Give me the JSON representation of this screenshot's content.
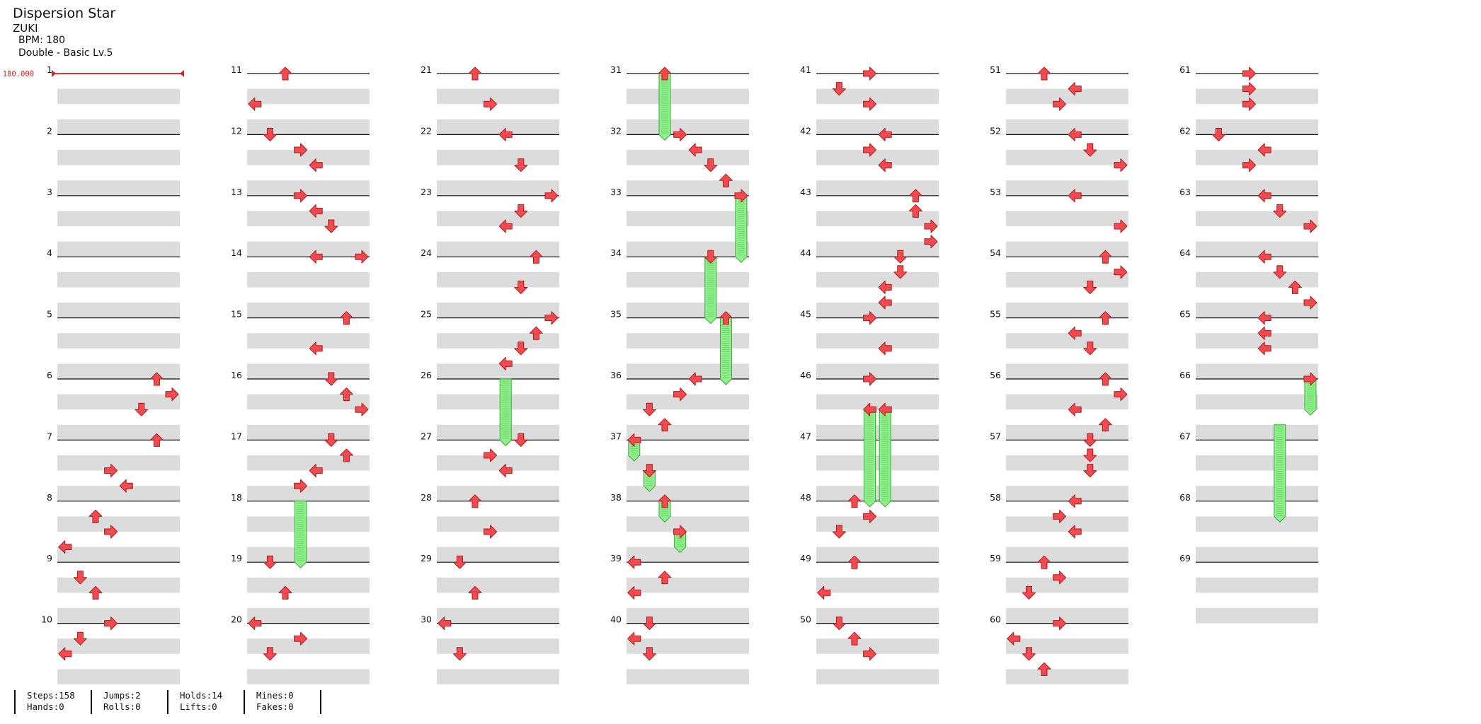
{
  "header": {
    "title": "Dispersion Star",
    "artist": "ZUKI",
    "bpm": "BPM: 180",
    "difficulty": "Double - Basic Lv.5"
  },
  "bpm_marker": "180.000",
  "colors": {
    "arrow_fill": "#f24a4f",
    "arrow_stroke": "#b11a20",
    "hold_fill": "#8ef08a",
    "hold_stripe": "#3aa63a",
    "band": "#dcdcdc",
    "bpm_red": "#e02020"
  },
  "measures": [
    {
      "n": 1,
      "rows": []
    },
    {
      "n": 2,
      "rows": []
    },
    {
      "n": 3,
      "rows": []
    },
    {
      "n": 4,
      "rows": []
    },
    {
      "n": 5,
      "rows": []
    },
    {
      "n": 6,
      "rows": [
        [
          0,
          6,
          "up"
        ],
        [
          1,
          7,
          "right"
        ],
        [
          2,
          5,
          "down"
        ]
      ]
    },
    {
      "n": 7,
      "rows": [
        [
          0,
          6,
          "up"
        ],
        [
          2,
          3,
          "right"
        ],
        [
          3,
          4,
          "left"
        ]
      ]
    },
    {
      "n": 8,
      "rows": [
        [
          1,
          2,
          "up"
        ],
        [
          2,
          3,
          "right"
        ],
        [
          3,
          0,
          "left"
        ]
      ]
    },
    {
      "n": 9,
      "rows": [
        [
          1,
          1,
          "down"
        ],
        [
          2,
          2,
          "up"
        ]
      ]
    },
    {
      "n": 10,
      "rows": [
        [
          0,
          3,
          "right"
        ],
        [
          1,
          1,
          "down"
        ],
        [
          2,
          0,
          "left"
        ]
      ]
    },
    {
      "n": 11,
      "rows": [
        [
          0,
          2,
          "up"
        ],
        [
          2,
          0,
          "left"
        ]
      ]
    },
    {
      "n": 12,
      "rows": [
        [
          0,
          1,
          "down"
        ],
        [
          1,
          3,
          "right"
        ],
        [
          2,
          4,
          "left"
        ]
      ]
    },
    {
      "n": 13,
      "rows": [
        [
          0,
          3,
          "right"
        ],
        [
          1,
          4,
          "left"
        ],
        [
          2,
          5,
          "down"
        ]
      ]
    },
    {
      "n": 14,
      "rows": [
        [
          0,
          4,
          "left"
        ],
        [
          0,
          7,
          "right"
        ]
      ]
    },
    {
      "n": 15,
      "rows": [
        [
          0,
          6,
          "up"
        ],
        [
          2,
          4,
          "left"
        ]
      ]
    },
    {
      "n": 16,
      "rows": [
        [
          0,
          5,
          "down"
        ],
        [
          1,
          6,
          "up"
        ],
        [
          2,
          7,
          "right"
        ]
      ]
    },
    {
      "n": 17,
      "rows": [
        [
          0,
          5,
          "down"
        ],
        [
          1,
          6,
          "up"
        ],
        [
          2,
          4,
          "left"
        ],
        [
          3,
          3,
          "right"
        ]
      ]
    },
    {
      "n": 18,
      "rows": []
    },
    {
      "n": 19,
      "rows": [
        [
          0,
          1,
          "down"
        ],
        [
          2,
          2,
          "up"
        ]
      ]
    },
    {
      "n": 20,
      "rows": [
        [
          0,
          0,
          "left"
        ],
        [
          1,
          3,
          "right"
        ],
        [
          2,
          1,
          "down"
        ]
      ]
    },
    {
      "n": 21,
      "rows": [
        [
          0,
          2,
          "up"
        ],
        [
          2,
          3,
          "right"
        ]
      ]
    },
    {
      "n": 22,
      "rows": [
        [
          0,
          4,
          "left"
        ],
        [
          2,
          5,
          "down"
        ]
      ]
    },
    {
      "n": 23,
      "rows": [
        [
          0,
          7,
          "right"
        ],
        [
          1,
          5,
          "down"
        ],
        [
          2,
          4,
          "left"
        ]
      ]
    },
    {
      "n": 24,
      "rows": [
        [
          0,
          6,
          "up"
        ],
        [
          2,
          5,
          "down"
        ]
      ]
    },
    {
      "n": 25,
      "rows": [
        [
          0,
          7,
          "right"
        ],
        [
          1,
          6,
          "up"
        ],
        [
          2,
          5,
          "down"
        ],
        [
          3,
          4,
          "left"
        ]
      ]
    },
    {
      "n": 26,
      "rows": []
    },
    {
      "n": 27,
      "rows": [
        [
          0,
          5,
          "down"
        ],
        [
          1,
          3,
          "right"
        ],
        [
          2,
          4,
          "left"
        ]
      ]
    },
    {
      "n": 28,
      "rows": [
        [
          0,
          2,
          "up"
        ],
        [
          2,
          3,
          "right"
        ]
      ]
    },
    {
      "n": 29,
      "rows": [
        [
          0,
          1,
          "down"
        ],
        [
          2,
          2,
          "up"
        ]
      ]
    },
    {
      "n": 30,
      "rows": [
        [
          0,
          0,
          "left"
        ],
        [
          2,
          1,
          "down"
        ]
      ]
    },
    {
      "n": 31,
      "rows": [
        [
          0,
          2,
          "up"
        ]
      ]
    },
    {
      "n": 32,
      "rows": [
        [
          0,
          3,
          "right"
        ],
        [
          1,
          4,
          "left"
        ],
        [
          2,
          5,
          "down"
        ],
        [
          3,
          6,
          "up"
        ]
      ]
    },
    {
      "n": 33,
      "rows": [
        [
          0,
          7,
          "right"
        ]
      ]
    },
    {
      "n": 34,
      "rows": [
        [
          0,
          5,
          "down"
        ]
      ]
    },
    {
      "n": 35,
      "rows": [
        [
          0,
          6,
          "up"
        ]
      ]
    },
    {
      "n": 36,
      "rows": [
        [
          0,
          4,
          "left"
        ],
        [
          1,
          3,
          "right"
        ],
        [
          2,
          1,
          "down"
        ],
        [
          3,
          2,
          "up"
        ]
      ]
    },
    {
      "n": 37,
      "rows": [
        [
          0,
          0,
          "left"
        ],
        [
          2,
          1,
          "down"
        ]
      ]
    },
    {
      "n": 38,
      "rows": [
        [
          0,
          2,
          "up"
        ],
        [
          2,
          3,
          "right"
        ]
      ]
    },
    {
      "n": 39,
      "rows": [
        [
          0,
          0,
          "left"
        ],
        [
          1,
          2,
          "up"
        ],
        [
          2,
          0,
          "left"
        ]
      ]
    },
    {
      "n": 40,
      "rows": [
        [
          0,
          1,
          "down"
        ],
        [
          1,
          0,
          "left"
        ],
        [
          2,
          1,
          "down"
        ]
      ]
    },
    {
      "n": 41,
      "rows": [
        [
          0,
          3,
          "right"
        ],
        [
          1,
          1,
          "down"
        ],
        [
          2,
          3,
          "right"
        ]
      ]
    },
    {
      "n": 42,
      "rows": [
        [
          0,
          4,
          "left"
        ],
        [
          1,
          3,
          "right"
        ],
        [
          2,
          4,
          "left"
        ]
      ]
    },
    {
      "n": 43,
      "rows": [
        [
          0,
          6,
          "up"
        ],
        [
          1,
          6,
          "up"
        ],
        [
          2,
          7,
          "right"
        ],
        [
          3,
          7,
          "right"
        ]
      ]
    },
    {
      "n": 44,
      "rows": [
        [
          0,
          5,
          "down"
        ],
        [
          1,
          5,
          "down"
        ],
        [
          2,
          4,
          "left"
        ],
        [
          3,
          4,
          "left"
        ]
      ]
    },
    {
      "n": 45,
      "rows": [
        [
          0,
          3,
          "right"
        ],
        [
          2,
          4,
          "left"
        ]
      ]
    },
    {
      "n": 46,
      "rows": [
        [
          0,
          3,
          "right"
        ],
        [
          2,
          3,
          "left"
        ],
        [
          2,
          4,
          "left"
        ]
      ]
    },
    {
      "n": 47,
      "rows": []
    },
    {
      "n": 48,
      "rows": [
        [
          0,
          2,
          "up"
        ],
        [
          1,
          3,
          "right"
        ],
        [
          2,
          1,
          "down"
        ]
      ]
    },
    {
      "n": 49,
      "rows": [
        [
          0,
          2,
          "up"
        ],
        [
          2,
          0,
          "left"
        ]
      ]
    },
    {
      "n": 50,
      "rows": [
        [
          0,
          1,
          "down"
        ],
        [
          1,
          2,
          "up"
        ],
        [
          2,
          3,
          "right"
        ]
      ]
    },
    {
      "n": 51,
      "rows": [
        [
          0,
          2,
          "up"
        ],
        [
          1,
          4,
          "left"
        ],
        [
          2,
          3,
          "right"
        ]
      ]
    },
    {
      "n": 52,
      "rows": [
        [
          0,
          4,
          "left"
        ],
        [
          1,
          5,
          "down"
        ],
        [
          2,
          7,
          "right"
        ]
      ]
    },
    {
      "n": 53,
      "rows": [
        [
          0,
          4,
          "left"
        ],
        [
          2,
          7,
          "right"
        ]
      ]
    },
    {
      "n": 54,
      "rows": [
        [
          0,
          6,
          "up"
        ],
        [
          1,
          7,
          "right"
        ],
        [
          2,
          5,
          "down"
        ]
      ]
    },
    {
      "n": 55,
      "rows": [
        [
          0,
          6,
          "up"
        ],
        [
          1,
          4,
          "left"
        ],
        [
          2,
          5,
          "down"
        ]
      ]
    },
    {
      "n": 56,
      "rows": [
        [
          0,
          6,
          "up"
        ],
        [
          1,
          7,
          "right"
        ],
        [
          2,
          4,
          "left"
        ],
        [
          3,
          6,
          "up"
        ]
      ]
    },
    {
      "n": 57,
      "rows": [
        [
          0,
          5,
          "down"
        ],
        [
          1,
          5,
          "down"
        ],
        [
          2,
          5,
          "down"
        ]
      ]
    },
    {
      "n": 58,
      "rows": [
        [
          0,
          4,
          "left"
        ],
        [
          1,
          3,
          "right"
        ],
        [
          2,
          4,
          "left"
        ]
      ]
    },
    {
      "n": 59,
      "rows": [
        [
          0,
          2,
          "up"
        ],
        [
          1,
          3,
          "right"
        ],
        [
          2,
          1,
          "down"
        ]
      ]
    },
    {
      "n": 60,
      "rows": [
        [
          0,
          3,
          "right"
        ],
        [
          1,
          0,
          "left"
        ],
        [
          2,
          1,
          "down"
        ],
        [
          3,
          2,
          "up"
        ]
      ]
    },
    {
      "n": 61,
      "rows": [
        [
          0,
          3,
          "right"
        ],
        [
          1,
          3,
          "right"
        ],
        [
          2,
          3,
          "right"
        ]
      ]
    },
    {
      "n": 62,
      "rows": [
        [
          0,
          1,
          "down"
        ],
        [
          1,
          4,
          "left"
        ],
        [
          2,
          3,
          "right"
        ]
      ]
    },
    {
      "n": 63,
      "rows": [
        [
          0,
          4,
          "left"
        ],
        [
          1,
          5,
          "down"
        ],
        [
          2,
          7,
          "right"
        ]
      ]
    },
    {
      "n": 64,
      "rows": [
        [
          0,
          4,
          "left"
        ],
        [
          1,
          5,
          "down"
        ],
        [
          2,
          6,
          "up"
        ],
        [
          3,
          7,
          "right"
        ]
      ]
    },
    {
      "n": 65,
      "rows": [
        [
          0,
          4,
          "left"
        ],
        [
          1,
          4,
          "left"
        ],
        [
          2,
          4,
          "left"
        ]
      ]
    },
    {
      "n": 66,
      "rows": [
        [
          0,
          7,
          "right"
        ]
      ]
    },
    {
      "n": 67,
      "rows": []
    },
    {
      "n": 68,
      "rows": []
    },
    {
      "n": 69,
      "rows": []
    }
  ],
  "holds": [
    {
      "m": 18,
      "r": 0,
      "col": 3,
      "len": 4
    },
    {
      "m": 26,
      "r": 0,
      "col": 4,
      "len": 4
    },
    {
      "m": 31,
      "r": 0,
      "col": 2,
      "len": 4
    },
    {
      "m": 33,
      "r": 0,
      "col": 7,
      "len": 4
    },
    {
      "m": 34,
      "r": 0,
      "col": 5,
      "len": 4
    },
    {
      "m": 35,
      "r": 0,
      "col": 6,
      "len": 4
    },
    {
      "m": 37,
      "r": 0,
      "col": 0,
      "len": 1
    },
    {
      "m": 37,
      "r": 2,
      "col": 1,
      "len": 1
    },
    {
      "m": 38,
      "r": 0,
      "col": 2,
      "len": 1
    },
    {
      "m": 38,
      "r": 2,
      "col": 3,
      "len": 1
    },
    {
      "m": 46,
      "r": 2,
      "col": 3,
      "len": 6
    },
    {
      "m": 46,
      "r": 2,
      "col": 4,
      "len": 6
    },
    {
      "m": 66,
      "r": 0,
      "col": 7,
      "len": 2
    },
    {
      "m": 66,
      "r": 3,
      "col": 5,
      "len": 6
    }
  ],
  "stats": [
    {
      "a": "Steps:158",
      "b": "Hands:0"
    },
    {
      "a": "Jumps:2",
      "b": "Rolls:0"
    },
    {
      "a": "Holds:14",
      "b": "Lifts:0"
    },
    {
      "a": "Mines:0",
      "b": "Fakes:0"
    }
  ]
}
